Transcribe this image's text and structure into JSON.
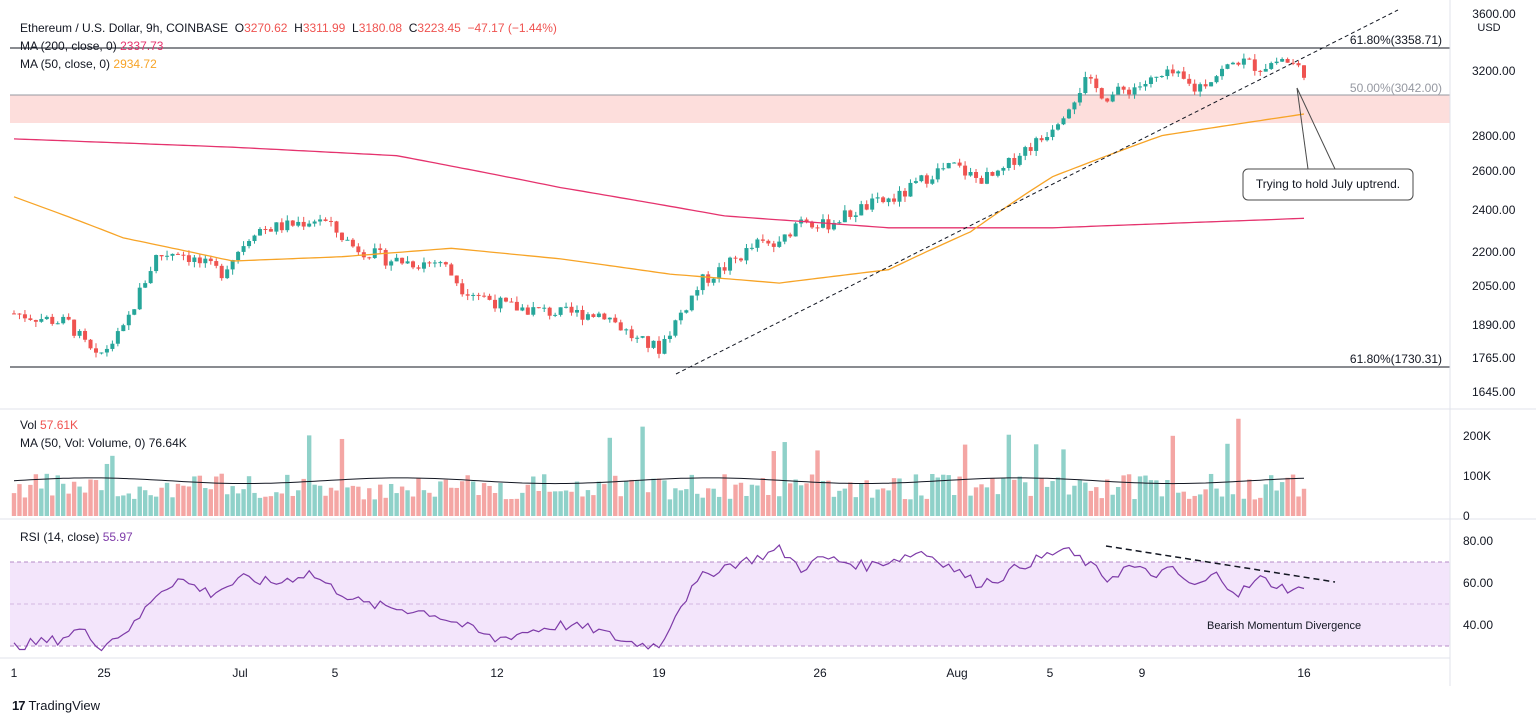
{
  "header": {
    "symbol": "Ethereum / U.S. Dollar, 9h, COINBASE",
    "open_label": "O",
    "open": "3270.62",
    "high_label": "H",
    "high": "3311.99",
    "low_label": "L",
    "low": "3180.08",
    "close_label": "C",
    "close": "3223.45",
    "change": "−47.17 (−1.44%)",
    "currency": "USD"
  },
  "indicators": {
    "ma200_label": "MA (200, close, 0)",
    "ma200_value": "2337.73",
    "ma50_label": "MA (50, close, 0)",
    "ma50_value": "2934.72",
    "vol_label": "Vol",
    "vol_value": "57.61K",
    "vol_ma_label": "MA (50, Vol: Volume, 0)",
    "vol_ma_value": "76.64K",
    "rsi_label": "RSI (14, close)",
    "rsi_value": "55.97"
  },
  "annotations": {
    "uptrend_note": "Trying to hold July uptrend.",
    "divergence_note": "Bearish Momentum Divergence"
  },
  "branding": {
    "logo_text": "TradingView"
  },
  "colors": {
    "up": "#26a69a",
    "down": "#ef5350",
    "up_vol": "#8fd1c9",
    "down_vol": "#f4a6a4",
    "ma200": "#e5336e",
    "ma50": "#f7a427",
    "rsi": "#7e3ba8",
    "rsi_band": "#f3e5fb",
    "zone": "#fddad8"
  },
  "chart_data": [
    {
      "type": "candlestick",
      "title": "Ethereum / U.S. Dollar, 9h, COINBASE",
      "ylabel": "USD",
      "x_tick_labels": [
        "1",
        "25",
        "Jul",
        "5",
        "12",
        "19",
        "26",
        "Aug",
        "5",
        "9",
        "16"
      ],
      "y_tick_labels": [
        "1645.00",
        "1765.00",
        "1890.00",
        "2050.00",
        "2200.00",
        "2400.00",
        "2600.00",
        "2800.00",
        "3200.00",
        "3600.00"
      ],
      "y_scale": "log",
      "ylim": [
        1580,
        3650
      ],
      "fib_levels": [
        {
          "label": "61.80%(3358.71)",
          "value": 3358.71
        },
        {
          "label": "50.00%(3042.00)",
          "value": 3042.0
        },
        {
          "label": "61.80%(1730.31)",
          "value": 1730.31
        }
      ],
      "support_zone": [
        2880,
        3042
      ],
      "close_key_points": [
        [
          0,
          1900
        ],
        [
          10,
          1860
        ],
        [
          15,
          1720
        ],
        [
          20,
          1830
        ],
        [
          26,
          2150
        ],
        [
          30,
          2180
        ],
        [
          34,
          2120
        ],
        [
          38,
          2080
        ],
        [
          44,
          2280
        ],
        [
          50,
          2300
        ],
        [
          56,
          2340
        ],
        [
          62,
          2200
        ],
        [
          68,
          2140
        ],
        [
          74,
          2120
        ],
        [
          78,
          2130
        ],
        [
          82,
          2010
        ],
        [
          90,
          1930
        ],
        [
          100,
          1900
        ],
        [
          108,
          1900
        ],
        [
          114,
          1790
        ],
        [
          118,
          1760
        ],
        [
          122,
          1900
        ],
        [
          126,
          2040
        ],
        [
          130,
          2100
        ],
        [
          136,
          2210
        ],
        [
          140,
          2200
        ],
        [
          144,
          2350
        ],
        [
          148,
          2300
        ],
        [
          152,
          2350
        ],
        [
          156,
          2400
        ],
        [
          162,
          2450
        ],
        [
          168,
          2580
        ],
        [
          172,
          2620
        ],
        [
          176,
          2550
        ],
        [
          180,
          2560
        ],
        [
          184,
          2700
        ],
        [
          188,
          2780
        ],
        [
          192,
          2950
        ],
        [
          196,
          3150
        ],
        [
          200,
          3050
        ],
        [
          204,
          3100
        ],
        [
          208,
          3150
        ],
        [
          212,
          3200
        ],
        [
          216,
          3100
        ],
        [
          220,
          3200
        ],
        [
          224,
          3300
        ],
        [
          228,
          3250
        ],
        [
          232,
          3310
        ],
        [
          236,
          3223
        ]
      ],
      "ma200_key_points": [
        [
          0,
          2780
        ],
        [
          40,
          2730
        ],
        [
          70,
          2680
        ],
        [
          100,
          2500
        ],
        [
          130,
          2350
        ],
        [
          160,
          2290
        ],
        [
          190,
          2290
        ],
        [
          236,
          2337.73
        ]
      ],
      "ma50_key_points": [
        [
          0,
          2450
        ],
        [
          20,
          2240
        ],
        [
          40,
          2130
        ],
        [
          60,
          2150
        ],
        [
          80,
          2190
        ],
        [
          100,
          2140
        ],
        [
          120,
          2070
        ],
        [
          140,
          2030
        ],
        [
          160,
          2090
        ],
        [
          175,
          2270
        ],
        [
          190,
          2560
        ],
        [
          210,
          2800
        ],
        [
          236,
          2934.72
        ]
      ],
      "trendline": {
        "from": [
          118,
          1720
        ],
        "to": [
          252,
          3600
        ]
      }
    },
    {
      "type": "bar",
      "title": "Vol",
      "y_tick_labels": [
        "0",
        "100K",
        "200K"
      ],
      "ylim": [
        0,
        220000
      ],
      "ma50": 76640,
      "last_value": 57610
    },
    {
      "type": "line",
      "title": "RSI (14, close)",
      "y_tick_labels": [
        "40.00",
        "60.00",
        "80.00"
      ],
      "ylim": [
        22,
        86
      ],
      "bands": [
        30,
        50,
        70
      ],
      "key_points": [
        [
          0,
          30
        ],
        [
          8,
          33
        ],
        [
          12,
          38
        ],
        [
          16,
          30
        ],
        [
          22,
          40
        ],
        [
          26,
          55
        ],
        [
          30,
          62
        ],
        [
          36,
          55
        ],
        [
          42,
          62
        ],
        [
          48,
          60
        ],
        [
          54,
          65
        ],
        [
          58,
          58
        ],
        [
          64,
          50
        ],
        [
          70,
          48
        ],
        [
          76,
          46
        ],
        [
          82,
          40
        ],
        [
          88,
          33
        ],
        [
          94,
          37
        ],
        [
          100,
          40
        ],
        [
          106,
          38
        ],
        [
          112,
          32
        ],
        [
          118,
          30
        ],
        [
          122,
          50
        ],
        [
          126,
          63
        ],
        [
          130,
          68
        ],
        [
          136,
          72
        ],
        [
          140,
          76
        ],
        [
          144,
          67
        ],
        [
          148,
          72
        ],
        [
          152,
          70
        ],
        [
          156,
          68
        ],
        [
          162,
          72
        ],
        [
          166,
          75
        ],
        [
          170,
          70
        ],
        [
          176,
          60
        ],
        [
          180,
          62
        ],
        [
          184,
          68
        ],
        [
          188,
          72
        ],
        [
          192,
          76
        ],
        [
          196,
          70
        ],
        [
          200,
          62
        ],
        [
          204,
          68
        ],
        [
          208,
          64
        ],
        [
          212,
          66
        ],
        [
          216,
          58
        ],
        [
          220,
          64
        ],
        [
          224,
          55
        ],
        [
          228,
          62
        ],
        [
          232,
          58
        ],
        [
          236,
          55.97
        ]
      ],
      "divergence_line": {
        "from": [
          192,
          77
        ],
        "to": [
          252,
          64
        ]
      }
    }
  ]
}
